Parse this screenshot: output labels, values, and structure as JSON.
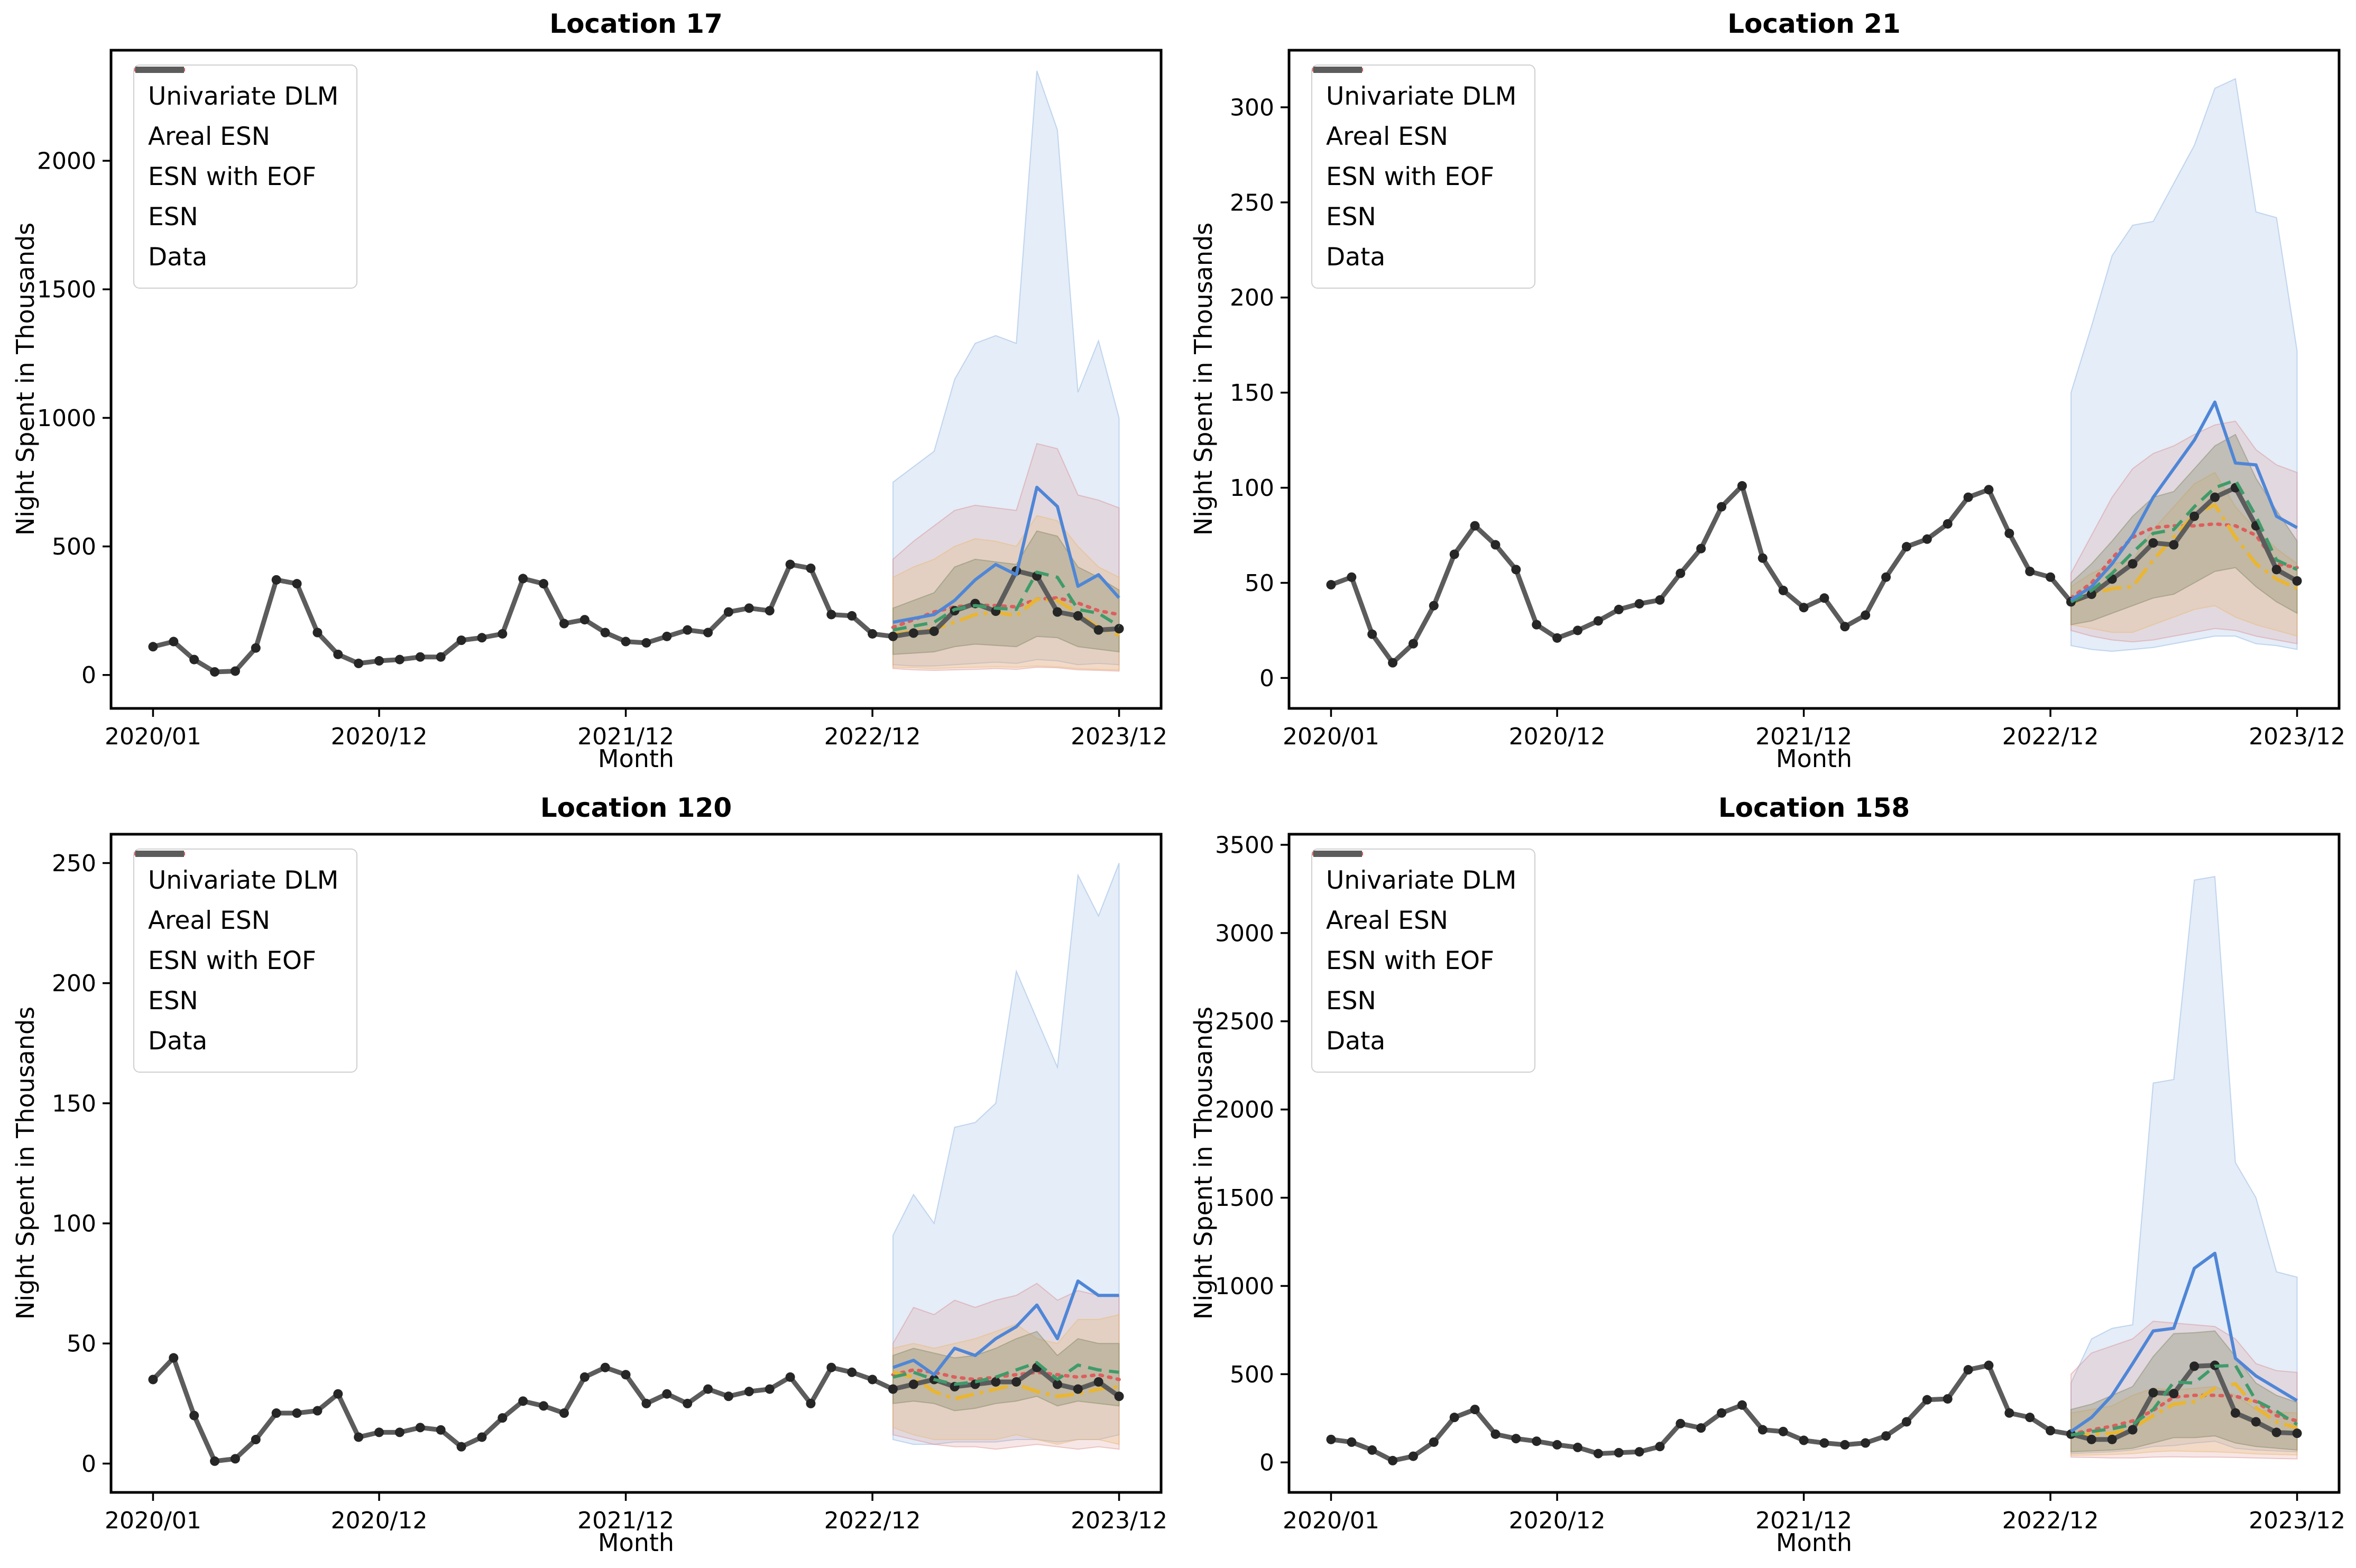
{
  "legend": {
    "items": [
      {
        "key": "dlm",
        "label": "Univariate DLM"
      },
      {
        "key": "areal_esn",
        "label": "Areal ESN"
      },
      {
        "key": "esn_eof",
        "label": "ESN with EOF"
      },
      {
        "key": "esn",
        "label": "ESN"
      },
      {
        "key": "data",
        "label": "Data"
      }
    ]
  },
  "colors": {
    "figure_background": "#ffffff",
    "series": {
      "dlm": "#4f86d6",
      "areal_esn": "#3f9b6a",
      "esn_eof": "#eab531",
      "esn": "#dd5e5e",
      "data": "#5c5c5c",
      "data_marker": "#262626"
    },
    "bands": {
      "dlm": {
        "fill": "#86aede",
        "opacity": 0.22
      },
      "esn": {
        "fill": "#d98c8c",
        "opacity": 0.22
      },
      "esn_eof": {
        "fill": "#e9b86a",
        "opacity": 0.25
      },
      "areal_esn": {
        "fill": "#7c855f",
        "opacity": 0.32
      }
    }
  },
  "x_axis": {
    "label": "Month",
    "n_months": 48,
    "tick_positions": [
      0,
      11,
      23,
      35,
      47
    ],
    "tick_labels": [
      "2020/01",
      "2020/12",
      "2021/12",
      "2022/12",
      "2023/12"
    ]
  },
  "chart_data": [
    {
      "type": "line",
      "title": "Location 17",
      "xlabel": "Month",
      "ylabel": "Night Spent in Thousands",
      "yticks": [
        0,
        500,
        1000,
        1500,
        2000
      ],
      "ylim": [
        -130,
        2430
      ],
      "forecast_start_index": 36,
      "data": [
        110,
        130,
        60,
        12,
        15,
        105,
        370,
        355,
        165,
        80,
        45,
        55,
        60,
        70,
        70,
        135,
        145,
        160,
        375,
        355,
        200,
        215,
        165,
        130,
        125,
        150,
        175,
        165,
        245,
        260,
        250,
        430,
        415,
        235,
        230,
        160,
        150,
        163,
        170,
        250,
        278,
        248,
        405,
        385,
        245,
        230,
        175,
        180
      ],
      "series": {
        "dlm": [
          205,
          220,
          235,
          290,
          370,
          430,
          390,
          730,
          655,
          345,
          390,
          300
        ],
        "areal_esn": [
          175,
          190,
          205,
          255,
          270,
          260,
          255,
          400,
          380,
          255,
          240,
          190
        ],
        "esn_eof": [
          160,
          168,
          178,
          205,
          235,
          245,
          230,
          295,
          290,
          240,
          185,
          155
        ],
        "esn": [
          185,
          215,
          245,
          265,
          272,
          270,
          265,
          295,
          300,
          280,
          250,
          235
        ]
      },
      "bands": {
        "dlm": {
          "upper": [
            750,
            810,
            870,
            1150,
            1290,
            1320,
            1290,
            2350,
            2120,
            1100,
            1300,
            1000
          ],
          "lower": [
            40,
            35,
            35,
            40,
            45,
            50,
            45,
            60,
            55,
            40,
            45,
            40
          ]
        },
        "esn": {
          "upper": [
            450,
            520,
            580,
            640,
            660,
            650,
            640,
            900,
            880,
            700,
            680,
            650
          ],
          "lower": [
            25,
            20,
            18,
            20,
            22,
            25,
            22,
            30,
            28,
            20,
            18,
            15
          ]
        },
        "esn_eof": {
          "upper": [
            380,
            420,
            450,
            500,
            530,
            520,
            500,
            620,
            600,
            500,
            420,
            380
          ],
          "lower": [
            30,
            28,
            25,
            28,
            30,
            32,
            30,
            35,
            32,
            25,
            22,
            20
          ]
        },
        "areal_esn": {
          "upper": [
            260,
            290,
            320,
            420,
            450,
            440,
            430,
            560,
            540,
            420,
            380,
            330
          ],
          "lower": [
            80,
            85,
            90,
            110,
            120,
            115,
            110,
            150,
            145,
            110,
            100,
            90
          ]
        }
      }
    },
    {
      "type": "line",
      "title": "Location 21",
      "xlabel": "Month",
      "ylabel": "Night Spent in Thousands",
      "yticks": [
        0,
        50,
        100,
        150,
        200,
        250,
        300
      ],
      "ylim": [
        -16,
        330
      ],
      "forecast_start_index": 36,
      "data": [
        49,
        53,
        23,
        8,
        18,
        38,
        65,
        80,
        70,
        57,
        28,
        21,
        25,
        30,
        36,
        39,
        41,
        55,
        68,
        90,
        101,
        63,
        46,
        37,
        42,
        27,
        33,
        53,
        69,
        73,
        81,
        95,
        99,
        76,
        56,
        53,
        40,
        44,
        52,
        60,
        71,
        70,
        85,
        95,
        100,
        80,
        57,
        51
      ],
      "series": {
        "dlm": [
          41,
          48,
          60,
          75,
          95,
          110,
          125,
          145,
          113,
          112,
          85,
          79
        ],
        "areal_esn": [
          40,
          46,
          55,
          66,
          76,
          78,
          90,
          100,
          104,
          85,
          62,
          57
        ],
        "esn_eof": [
          39,
          44,
          47,
          48,
          62,
          74,
          86,
          91,
          74,
          60,
          52,
          47
        ],
        "esn": [
          42,
          50,
          63,
          74,
          79,
          80,
          80,
          81,
          80,
          75,
          60,
          58
        ]
      },
      "bands": {
        "dlm": {
          "upper": [
            150,
            185,
            222,
            238,
            240,
            260,
            280,
            310,
            315,
            245,
            242,
            172
          ],
          "lower": [
            17,
            15,
            14,
            15,
            16,
            18,
            20,
            22,
            22,
            18,
            17,
            15
          ]
        },
        "esn": {
          "upper": [
            55,
            75,
            95,
            110,
            118,
            122,
            128,
            133,
            135,
            120,
            112,
            108
          ],
          "lower": [
            25,
            22,
            20,
            19,
            20,
            22,
            24,
            26,
            25,
            22,
            20,
            18
          ]
        },
        "esn_eof": {
          "upper": [
            48,
            55,
            60,
            62,
            78,
            90,
            102,
            108,
            90,
            78,
            68,
            60
          ],
          "lower": [
            28,
            26,
            24,
            24,
            28,
            32,
            36,
            38,
            32,
            28,
            25,
            22
          ]
        },
        "areal_esn": {
          "upper": [
            50,
            60,
            72,
            85,
            95,
            98,
            110,
            122,
            128,
            105,
            88,
            72
          ],
          "lower": [
            28,
            30,
            34,
            38,
            42,
            44,
            50,
            56,
            58,
            48,
            40,
            34
          ]
        }
      }
    },
    {
      "type": "line",
      "title": "Location 120",
      "xlabel": "Month",
      "ylabel": "Night Spent in Thousands",
      "yticks": [
        0,
        50,
        100,
        150,
        200,
        250
      ],
      "ylim": [
        -12,
        262
      ],
      "forecast_start_index": 36,
      "data": [
        35,
        44,
        20,
        1,
        2,
        10,
        21,
        21,
        22,
        29,
        11,
        13,
        13,
        15,
        14,
        7,
        11,
        19,
        26,
        24,
        21,
        36,
        40,
        37,
        25,
        29,
        25,
        31,
        28,
        30,
        31,
        36,
        25,
        40,
        38,
        35,
        31,
        33,
        35,
        32,
        33,
        34,
        34,
        40,
        33,
        31,
        34,
        28
      ],
      "series": {
        "dlm": [
          40,
          43,
          37,
          48,
          45,
          52,
          57,
          66,
          52,
          76,
          70,
          70
        ],
        "areal_esn": [
          36,
          38,
          35,
          33,
          34,
          36,
          39,
          42,
          35,
          41,
          39,
          38
        ],
        "esn_eof": [
          38,
          36,
          30,
          27,
          29,
          31,
          33,
          30,
          28,
          29,
          31,
          32
        ],
        "esn": [
          37,
          39,
          38,
          36,
          35,
          36,
          37,
          38,
          37,
          36,
          37,
          35
        ]
      },
      "bands": {
        "dlm": {
          "upper": [
            95,
            112,
            100,
            140,
            142,
            150,
            205,
            185,
            165,
            245,
            228,
            250
          ],
          "lower": [
            10,
            8,
            8,
            9,
            9,
            9,
            10,
            10,
            9,
            10,
            10,
            12
          ]
        },
        "esn": {
          "upper": [
            50,
            65,
            62,
            68,
            65,
            68,
            70,
            75,
            68,
            72,
            70,
            70
          ],
          "lower": [
            12,
            10,
            8,
            7,
            7,
            6,
            7,
            8,
            7,
            6,
            7,
            6
          ]
        },
        "esn_eof": {
          "upper": [
            48,
            50,
            48,
            50,
            52,
            55,
            58,
            52,
            50,
            60,
            60,
            62
          ],
          "lower": [
            15,
            12,
            10,
            10,
            10,
            10,
            12,
            10,
            8,
            10,
            10,
            8
          ]
        },
        "areal_esn": {
          "upper": [
            45,
            48,
            46,
            44,
            45,
            48,
            52,
            55,
            45,
            52,
            50,
            50
          ],
          "lower": [
            25,
            26,
            25,
            22,
            23,
            25,
            26,
            28,
            24,
            26,
            25,
            24
          ]
        }
      }
    },
    {
      "type": "line",
      "title": "Location 158",
      "xlabel": "Month",
      "ylabel": "Night Spent in Thousands",
      "yticks": [
        0,
        500,
        1000,
        1500,
        2000,
        2500,
        3000,
        3500
      ],
      "ylim": [
        -170,
        3560
      ],
      "forecast_start_index": 36,
      "data": [
        130,
        115,
        70,
        10,
        35,
        115,
        255,
        300,
        160,
        135,
        120,
        100,
        85,
        50,
        55,
        60,
        90,
        220,
        195,
        280,
        325,
        185,
        175,
        125,
        110,
        100,
        110,
        150,
        230,
        355,
        360,
        525,
        550,
        280,
        255,
        180,
        160,
        130,
        130,
        185,
        395,
        390,
        545,
        550,
        280,
        230,
        170,
        165
      ],
      "series": {
        "dlm": [
          175,
          255,
          380,
          560,
          745,
          760,
          1100,
          1185,
          590,
          490,
          420,
          350
        ],
        "areal_esn": [
          155,
          175,
          190,
          215,
          300,
          455,
          450,
          545,
          550,
          350,
          290,
          215
        ],
        "esn_eof": [
          150,
          160,
          165,
          195,
          265,
          330,
          345,
          420,
          445,
          310,
          230,
          195
        ],
        "esn": [
          160,
          185,
          205,
          235,
          295,
          370,
          380,
          380,
          375,
          345,
          265,
          235
        ]
      },
      "bands": {
        "dlm": {
          "upper": [
            450,
            700,
            760,
            780,
            2150,
            2170,
            3300,
            3320,
            1700,
            1500,
            1080,
            1050
          ],
          "lower": [
            50,
            55,
            60,
            70,
            90,
            95,
            110,
            120,
            80,
            70,
            65,
            60
          ]
        },
        "esn": {
          "upper": [
            500,
            620,
            660,
            700,
            800,
            790,
            780,
            770,
            700,
            560,
            520,
            510
          ],
          "lower": [
            30,
            28,
            25,
            25,
            30,
            32,
            30,
            30,
            28,
            25,
            22,
            20
          ]
        },
        "esn_eof": {
          "upper": [
            280,
            300,
            320,
            380,
            420,
            410,
            420,
            430,
            380,
            300,
            285,
            280
          ],
          "lower": [
            40,
            42,
            45,
            50,
            60,
            65,
            62,
            60,
            55,
            48,
            45,
            42
          ]
        },
        "areal_esn": {
          "upper": [
            300,
            330,
            380,
            430,
            600,
            730,
            735,
            745,
            600,
            450,
            380,
            340
          ],
          "lower": [
            60,
            65,
            70,
            80,
            110,
            140,
            140,
            150,
            110,
            90,
            80,
            70
          ]
        }
      }
    }
  ]
}
